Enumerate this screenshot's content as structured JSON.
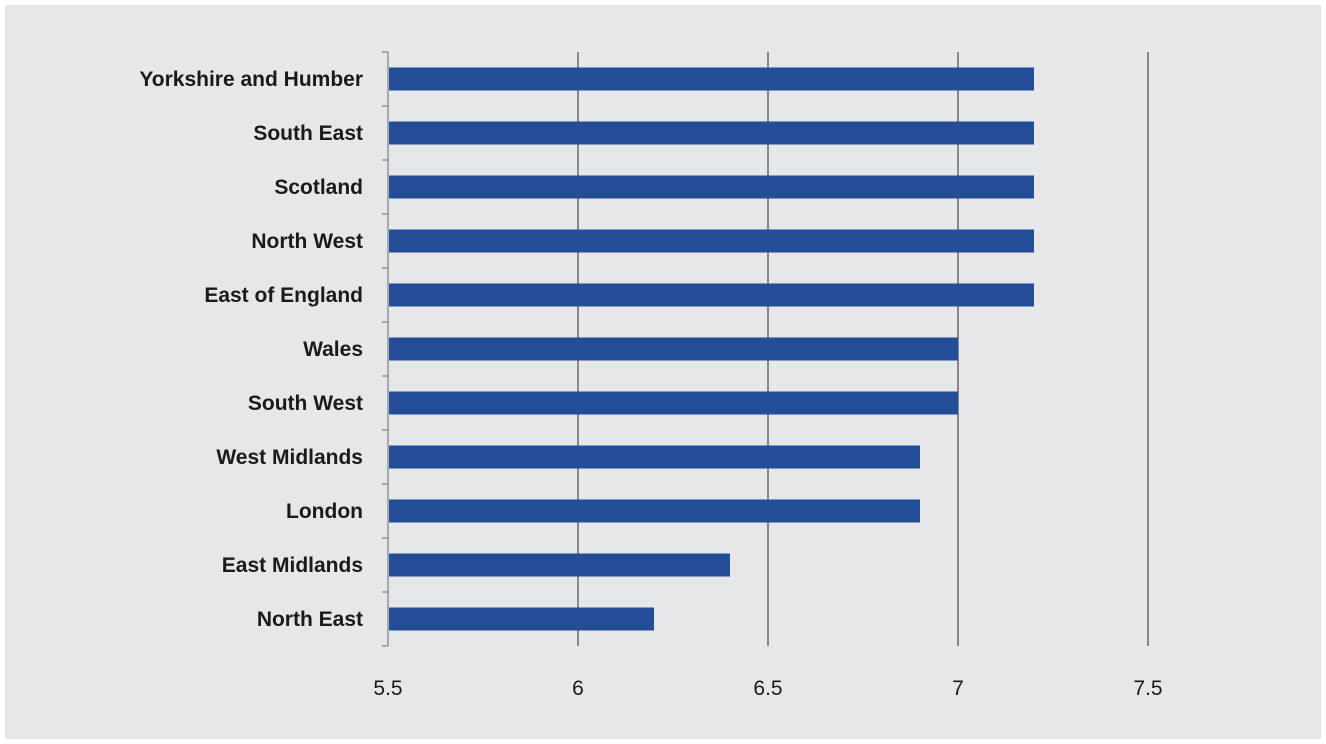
{
  "chart_data": {
    "type": "bar",
    "orientation": "horizontal",
    "title": "",
    "xlabel": "",
    "ylabel": "",
    "categories": [
      "Yorkshire and Humber",
      "South East",
      "Scotland",
      "North West",
      "East of England",
      "Wales",
      "South West",
      "West Midlands",
      "London",
      "East Midlands",
      "North East"
    ],
    "values": [
      7.2,
      7.2,
      7.2,
      7.2,
      7.2,
      7.0,
      7.0,
      6.9,
      6.9,
      6.4,
      6.2
    ],
    "xlim": [
      5.5,
      7.5
    ],
    "xticks": [
      "5.5",
      "6",
      "6.5",
      "7",
      "7.5"
    ],
    "grid": "vertical",
    "legend": "none",
    "colors": {
      "bar": "#234d96",
      "panel": "#e6e7e9",
      "gridline": "#555555",
      "axis": "#888888"
    }
  }
}
